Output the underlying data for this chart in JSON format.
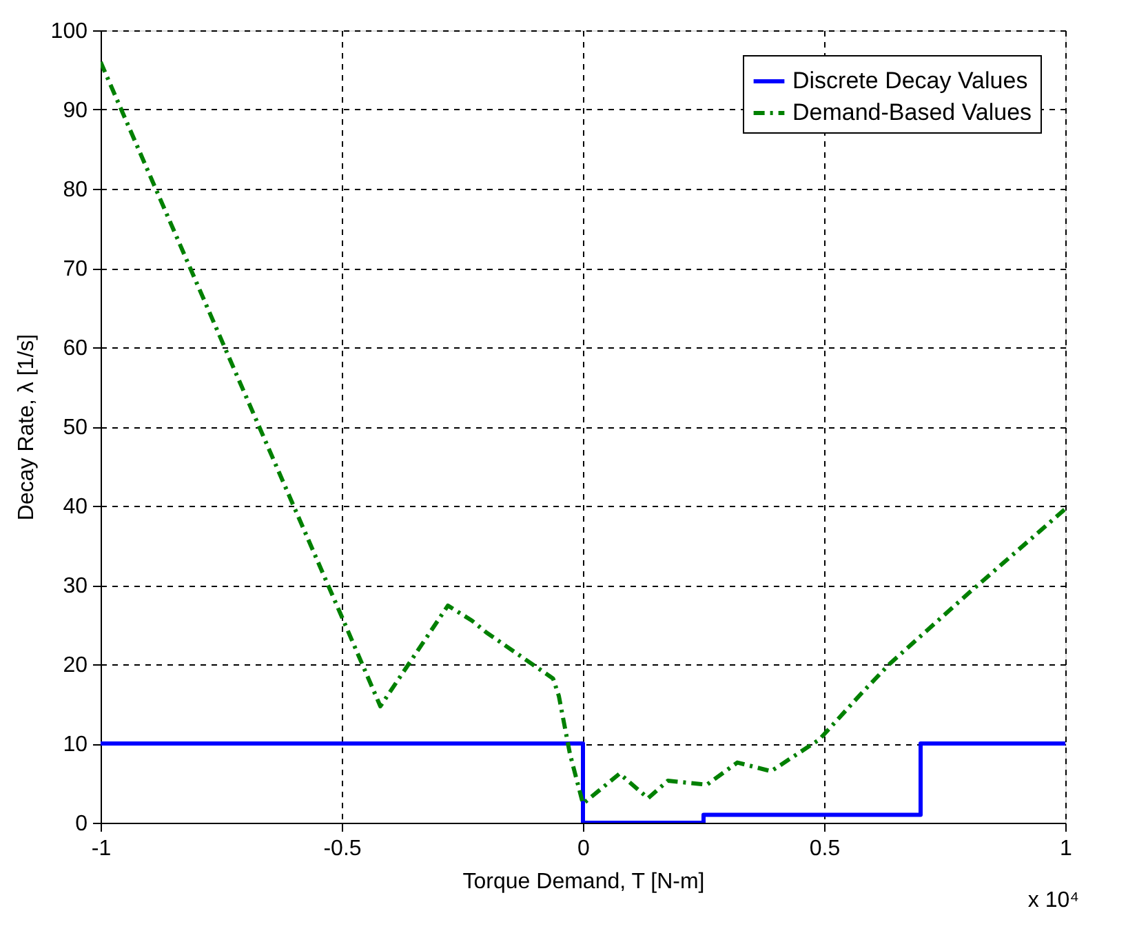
{
  "chart_data": {
    "type": "line",
    "xlabel": "Torque Demand, T [N-m]",
    "ylabel": "Decay Rate, λ [1/s]",
    "xlim": [
      -1,
      1
    ],
    "xticks": [
      -1,
      -0.5,
      0,
      0.5,
      1
    ],
    "ylim": [
      0,
      100
    ],
    "yticks": [
      0,
      10,
      20,
      30,
      40,
      50,
      60,
      70,
      80,
      90,
      100
    ],
    "grid": true,
    "legend": "top right",
    "annotations": [
      "x 10⁴"
    ],
    "series": [
      {
        "name": "Discrete Decay Values",
        "type": "step",
        "color": "#0000ff",
        "line_style": "solid",
        "x": [
          -1,
          0,
          0.25,
          0.7,
          1
        ],
        "values": [
          10,
          0,
          1,
          10,
          10
        ]
      },
      {
        "name": "Demand-Based Values",
        "type": "line",
        "color": "#008000",
        "line_style": "dashdot",
        "x": [
          -1,
          -0.5,
          -0.42,
          -0.28,
          -0.23,
          -0.2,
          -0.062,
          -0.05,
          -0.027,
          0,
          0.076,
          0.135,
          0.176,
          0.257,
          0.32,
          0.39,
          0.49,
          0.58,
          0.635,
          0.8,
          1
        ],
        "values": [
          96,
          26,
          14.7,
          27.4,
          25.5,
          24,
          18.2,
          16,
          8.7,
          2.4,
          6.2,
          3.1,
          5.3,
          4.8,
          7.6,
          6.5,
          10.5,
          16.5,
          20,
          29,
          39.6
        ]
      }
    ]
  }
}
